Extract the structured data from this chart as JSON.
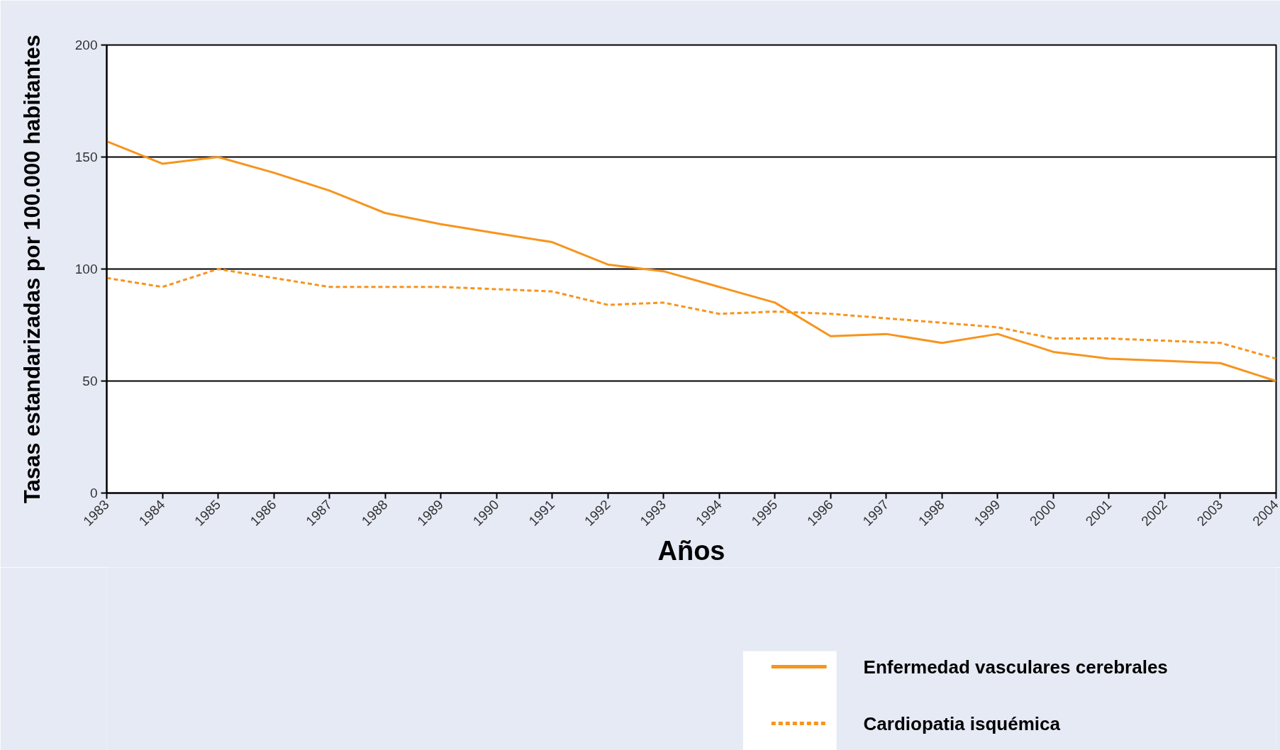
{
  "chart_data": {
    "type": "line",
    "xlabel": "Años",
    "ylabel": "Tasas estandarizadas por 100.000 habitantes",
    "categories": [
      "1983",
      "1984",
      "1985",
      "1986",
      "1987",
      "1988",
      "1989",
      "1990",
      "1991",
      "1992",
      "1993",
      "1994",
      "1995",
      "1996",
      "1997",
      "1998",
      "1999",
      "2000",
      "2001",
      "2002",
      "2003",
      "2004"
    ],
    "series": [
      {
        "name": "Enfermedad vasculares cerebrales",
        "color": "#f7941d",
        "line_style": "solid",
        "values": [
          157,
          147,
          150,
          143,
          135,
          125,
          120,
          116,
          112,
          102,
          99,
          92,
          85,
          70,
          71,
          67,
          71,
          63,
          60,
          59,
          58,
          50
        ]
      },
      {
        "name": "Cardiopatia isquémica",
        "color": "#f7941d",
        "line_style": "dashed",
        "values": [
          96,
          92,
          100,
          96,
          92,
          92,
          92,
          91,
          90,
          84,
          85,
          80,
          81,
          80,
          78,
          76,
          74,
          69,
          69,
          68,
          67,
          60
        ]
      }
    ],
    "ylim": [
      0,
      200
    ],
    "yticks": [
      0,
      50,
      100,
      150,
      200
    ],
    "grid": "y",
    "legend": "bottom right"
  }
}
